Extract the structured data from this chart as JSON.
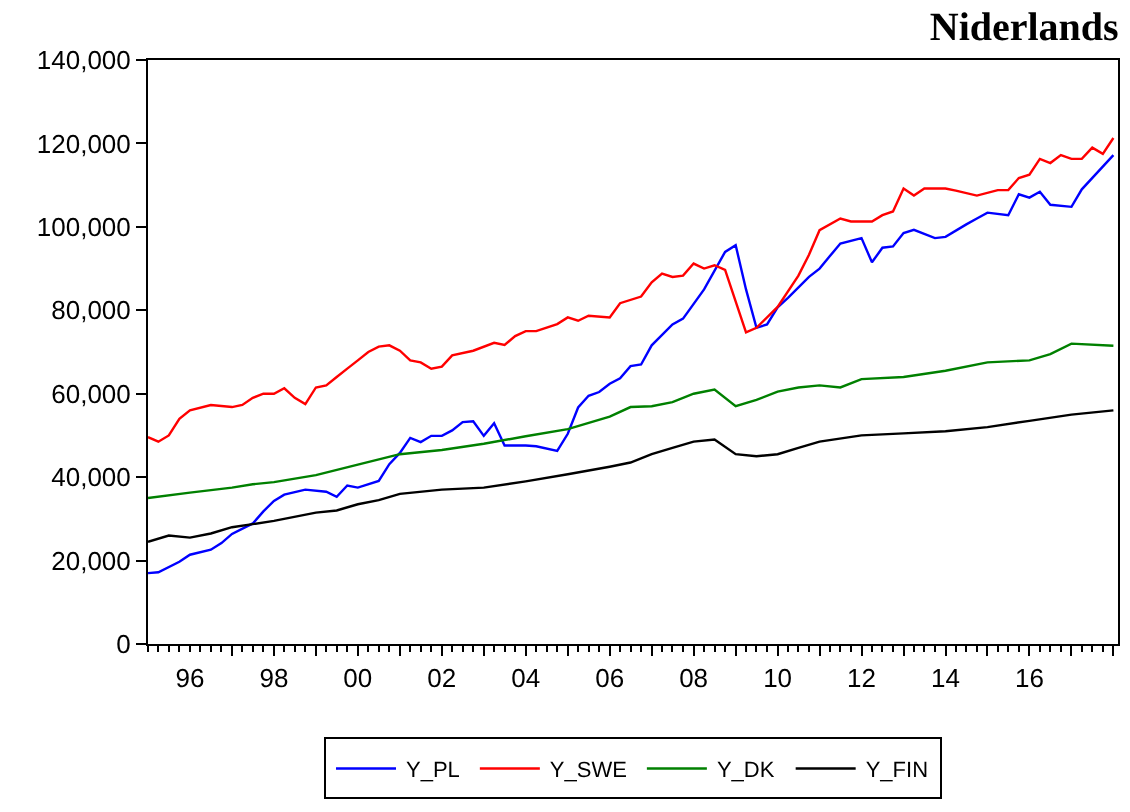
{
  "chart_data": {
    "type": "line",
    "title": "Niderlands",
    "xlim": [
      "1995-01-01",
      "2018-02-10"
    ],
    "ylim": [
      0,
      140000
    ],
    "yticks": [
      {
        "value": 0,
        "label": "0"
      },
      {
        "value": 20000,
        "label": "20,000"
      },
      {
        "value": 40000,
        "label": "40,000"
      },
      {
        "value": 60000,
        "label": "60,000"
      },
      {
        "value": 80000,
        "label": "80,000"
      },
      {
        "value": 100000,
        "label": "100,000"
      },
      {
        "value": 120000,
        "label": "120,000"
      },
      {
        "value": 140000,
        "label": "140,000"
      }
    ],
    "xticks": [
      {
        "value": "1996",
        "label": "96"
      },
      {
        "value": "1997",
        "label": null
      },
      {
        "value": "1998",
        "label": "98"
      },
      {
        "value": "1999",
        "label": null
      },
      {
        "value": "2000",
        "label": "00"
      },
      {
        "value": "2001",
        "label": null
      },
      {
        "value": "2002",
        "label": "02"
      },
      {
        "value": "2003",
        "label": null
      },
      {
        "value": "2004",
        "label": "04"
      },
      {
        "value": "2005",
        "label": null
      },
      {
        "value": "2006",
        "label": "06"
      },
      {
        "value": "2007",
        "label": null
      },
      {
        "value": "2008",
        "label": "08"
      },
      {
        "value": "2009",
        "label": null
      },
      {
        "value": "2010",
        "label": "10"
      },
      {
        "value": "2011",
        "label": null
      },
      {
        "value": "2012",
        "label": "12"
      },
      {
        "value": "2013",
        "label": null
      },
      {
        "value": "2014",
        "label": "14"
      },
      {
        "value": "2015",
        "label": null
      },
      {
        "value": "2016",
        "label": "16"
      },
      {
        "value": "2017",
        "label": null
      },
      {
        "value": "2018",
        "label": null
      }
    ],
    "legend": "bottom",
    "marker": "none",
    "line_style": "solid",
    "series": [
      {
        "name": "Y_PL",
        "color": "#0000ff",
        "x": [
          "1995-01",
          "1995-04",
          "1995-10",
          "1996-01",
          "1996-07",
          "1996-10",
          "1997-01",
          "1997-07",
          "1997-10",
          "1998-01",
          "1998-04",
          "1998-10",
          "1999-04",
          "1999-07",
          "1999-10",
          "2000-01",
          "2000-07",
          "2000-10",
          "2001-01",
          "2001-04",
          "2001-07",
          "2001-10",
          "2002-01",
          "2002-04",
          "2002-07",
          "2002-10",
          "2003-01",
          "2003-04",
          "2003-07",
          "2004-01",
          "2004-04",
          "2004-10",
          "2005-01",
          "2005-04",
          "2005-07",
          "2005-10",
          "2006-01",
          "2006-04",
          "2006-07",
          "2006-10",
          "2007-01",
          "2007-07",
          "2007-10",
          "2008-04",
          "2008-10",
          "2009-01",
          "2009-04",
          "2009-07",
          "2009-10",
          "2010-01",
          "2010-04",
          "2010-10",
          "2011-01",
          "2011-04",
          "2011-07",
          "2012-01",
          "2012-04",
          "2012-07",
          "2012-10",
          "2013-01",
          "2013-04",
          "2013-10",
          "2014-01",
          "2014-07",
          "2014-10",
          "2015-01",
          "2015-07",
          "2015-10",
          "2016-01",
          "2016-04",
          "2016-07",
          "2017-01",
          "2017-04",
          "2018-01"
        ],
        "values": [
          17000,
          17200,
          19700,
          21400,
          22600,
          24200,
          26400,
          28900,
          31800,
          34300,
          35800,
          37000,
          36500,
          35300,
          38000,
          37500,
          39100,
          43100,
          45800,
          49400,
          48400,
          49900,
          49900,
          51200,
          53200,
          53400,
          49900,
          52900,
          47600,
          47600,
          47400,
          46300,
          50400,
          56700,
          59500,
          60400,
          62400,
          63700,
          66600,
          67000,
          71600,
          76600,
          78000,
          85000,
          94000,
          95600,
          85000,
          75800,
          76600,
          80700,
          83000,
          88000,
          90000,
          93000,
          96000,
          97300,
          91500,
          95000,
          95300,
          98500,
          99300,
          97300,
          97600,
          100600,
          102000,
          103400,
          102800,
          107800,
          107000,
          108400,
          105300,
          104800,
          109000,
          117200
        ]
      },
      {
        "name": "Y_SWE",
        "color": "#ff0000",
        "x": [
          "1995-01",
          "1995-04",
          "1995-07",
          "1995-10",
          "1996-01",
          "1996-07",
          "1997-01",
          "1997-04",
          "1997-07",
          "1997-10",
          "1998-01",
          "1998-04",
          "1998-07",
          "1998-10",
          "1999-01",
          "1999-04",
          "1999-07",
          "1999-10",
          "2000-01",
          "2000-04",
          "2000-07",
          "2000-10",
          "2001-01",
          "2001-04",
          "2001-07",
          "2001-10",
          "2002-01",
          "2002-04",
          "2002-10",
          "2003-04",
          "2003-07",
          "2003-10",
          "2004-01",
          "2004-04",
          "2004-10",
          "2005-01",
          "2005-04",
          "2005-07",
          "2006-01",
          "2006-04",
          "2006-10",
          "2007-01",
          "2007-04",
          "2007-07",
          "2007-10",
          "2008-01",
          "2008-04",
          "2008-07",
          "2008-10",
          "2009-04",
          "2009-07",
          "2010-01",
          "2010-07",
          "2010-10",
          "2011-01",
          "2011-07",
          "2011-10",
          "2012-04",
          "2012-07",
          "2012-10",
          "2013-01",
          "2013-04",
          "2013-07",
          "2014-01",
          "2014-04",
          "2014-10",
          "2015-04",
          "2015-07",
          "2015-10",
          "2016-01",
          "2016-04",
          "2016-07",
          "2016-10",
          "2017-01",
          "2017-04",
          "2017-07",
          "2017-10",
          "2018-01"
        ],
        "values": [
          49600,
          48500,
          50000,
          54000,
          56000,
          57300,
          56800,
          57300,
          59000,
          60000,
          60000,
          61300,
          59000,
          57500,
          61500,
          62000,
          64000,
          66000,
          68000,
          70000,
          71300,
          71600,
          70300,
          68000,
          67500,
          66000,
          66500,
          69200,
          70300,
          72200,
          71700,
          73800,
          75000,
          75000,
          76700,
          78300,
          77500,
          78700,
          78300,
          81700,
          83300,
          86700,
          88800,
          88000,
          88300,
          91200,
          90000,
          90800,
          89700,
          74700,
          75800,
          80800,
          88300,
          93300,
          99200,
          102000,
          101300,
          101300,
          102800,
          103700,
          109200,
          107500,
          109200,
          109200,
          108700,
          107500,
          108800,
          108800,
          111700,
          112500,
          116300,
          115300,
          117200,
          116300,
          116300,
          119000,
          117500,
          121300
        ]
      },
      {
        "name": "Y_DK",
        "color": "#008000",
        "x": [
          "1995-01",
          "1996-01",
          "1997-01",
          "1997-07",
          "1998-01",
          "1999-01",
          "2000-01",
          "2001-01",
          "2002-01",
          "2003-01",
          "2004-01",
          "2005-01",
          "2006-01",
          "2006-07",
          "2007-01",
          "2007-07",
          "2008-01",
          "2008-07",
          "2009-01",
          "2009-07",
          "2010-01",
          "2010-07",
          "2011-01",
          "2011-07",
          "2012-01",
          "2013-01",
          "2014-01",
          "2015-01",
          "2016-01",
          "2016-07",
          "2017-01",
          "2018-01"
        ],
        "values": [
          35000,
          36300,
          37500,
          38300,
          38800,
          40500,
          43000,
          45500,
          46500,
          48000,
          49800,
          51500,
          54500,
          56800,
          57000,
          58000,
          60000,
          61000,
          57000,
          58500,
          60500,
          61500,
          62000,
          61500,
          63500,
          64000,
          65500,
          67500,
          68000,
          69500,
          72000,
          71500
        ]
      },
      {
        "name": "Y_FIN",
        "color": "#000000",
        "x": [
          "1995-01",
          "1995-07",
          "1996-01",
          "1996-07",
          "1997-01",
          "1998-01",
          "1999-01",
          "1999-07",
          "2000-01",
          "2000-07",
          "2001-01",
          "2002-01",
          "2003-01",
          "2004-01",
          "2005-01",
          "2006-01",
          "2006-07",
          "2007-01",
          "2007-07",
          "2008-01",
          "2008-07",
          "2009-01",
          "2009-07",
          "2010-01",
          "2010-07",
          "2011-01",
          "2012-01",
          "2013-01",
          "2014-01",
          "2015-01",
          "2016-01",
          "2017-01",
          "2018-01"
        ],
        "values": [
          24500,
          26000,
          25500,
          26500,
          28000,
          29500,
          31500,
          32000,
          33500,
          34500,
          36000,
          37000,
          37500,
          39000,
          40700,
          42500,
          43500,
          45500,
          47000,
          48500,
          49000,
          45500,
          45000,
          45500,
          47000,
          48500,
          50000,
          50500,
          51000,
          52000,
          53500,
          55000,
          56000
        ]
      }
    ]
  }
}
